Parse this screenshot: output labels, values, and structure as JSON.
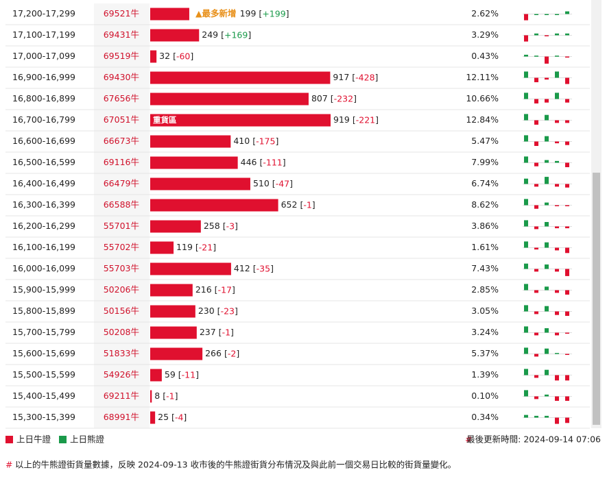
{
  "table": {
    "rows": [
      {
        "range": "17,200-17,299",
        "code": "69521牛",
        "qty": 199,
        "change": "+199",
        "pct": "2.62%",
        "tag": "▲最多新增",
        "trend": [
          -0.7,
          0,
          0,
          0,
          0.3
        ]
      },
      {
        "range": "17,100-17,199",
        "code": "69431牛",
        "qty": 249,
        "change": "+169",
        "pct": "3.29%",
        "trend": [
          -0.7,
          0.2,
          -0.1,
          0.2,
          0.2
        ]
      },
      {
        "range": "17,000-17,099",
        "code": "69519牛",
        "qty": 32,
        "change": "-60",
        "pct": "0.43%",
        "trend": [
          0.2,
          0.1,
          -0.8,
          0.1,
          -0.1
        ]
      },
      {
        "range": "16,900-16,999",
        "code": "69430牛",
        "qty": 917,
        "change": "-428",
        "pct": "12.11%",
        "trend": [
          0.7,
          -0.5,
          -0.2,
          0.7,
          -0.7
        ]
      },
      {
        "range": "16,800-16,899",
        "code": "67656牛",
        "qty": 807,
        "change": "-232",
        "pct": "10.66%",
        "trend": [
          0.7,
          -0.5,
          -0.4,
          0.7,
          -0.4
        ]
      },
      {
        "range": "16,700-16,799",
        "code": "67051牛",
        "qty": 919,
        "change": "-221",
        "pct": "12.84%",
        "tag": "重貨區",
        "trend": [
          0.7,
          -0.5,
          0.6,
          -0.3,
          -0.3
        ]
      },
      {
        "range": "16,600-16,699",
        "code": "66673牛",
        "qty": 410,
        "change": "-175",
        "pct": "5.47%",
        "trend": [
          0.7,
          -0.5,
          0.6,
          -0.2,
          -0.4
        ]
      },
      {
        "range": "16,500-16,599",
        "code": "69116牛",
        "qty": 446,
        "change": "-111",
        "pct": "7.99%",
        "trend": [
          0.7,
          -0.4,
          0.3,
          0.2,
          -0.5
        ]
      },
      {
        "range": "16,400-16,499",
        "code": "66479牛",
        "qty": 510,
        "change": "-47",
        "pct": "6.74%",
        "trend": [
          0.6,
          -0.3,
          0.8,
          -0.3,
          -0.4
        ]
      },
      {
        "range": "16,300-16,399",
        "code": "66588牛",
        "qty": 652,
        "change": "-1",
        "pct": "8.62%",
        "trend": [
          0.7,
          -0.4,
          0.3,
          -0.1,
          -0.1
        ]
      },
      {
        "range": "16,200-16,299",
        "code": "55701牛",
        "qty": 258,
        "change": "-3",
        "pct": "3.86%",
        "trend": [
          0.7,
          -0.3,
          0.5,
          -0.2,
          -0.2
        ]
      },
      {
        "range": "16,100-16,199",
        "code": "55702牛",
        "qty": 119,
        "change": "-21",
        "pct": "1.61%",
        "trend": [
          0.7,
          -0.2,
          0.6,
          -0.3,
          -0.6
        ]
      },
      {
        "range": "16,000-16,099",
        "code": "55703牛",
        "qty": 412,
        "change": "-35",
        "pct": "7.43%",
        "trend": [
          0.6,
          -0.3,
          0.5,
          -0.3,
          -0.8
        ]
      },
      {
        "range": "15,900-15,999",
        "code": "50206牛",
        "qty": 216,
        "change": "-17",
        "pct": "2.85%",
        "trend": [
          0.7,
          -0.3,
          0.4,
          -0.3,
          -0.5
        ]
      },
      {
        "range": "15,800-15,899",
        "code": "50156牛",
        "qty": 230,
        "change": "-23",
        "pct": "3.05%",
        "trend": [
          0.7,
          -0.3,
          0.6,
          -0.4,
          -0.5
        ]
      },
      {
        "range": "15,700-15,799",
        "code": "50208牛",
        "qty": 237,
        "change": "-1",
        "pct": "3.24%",
        "trend": [
          0.7,
          -0.3,
          0.5,
          -0.3,
          -0.1
        ]
      },
      {
        "range": "15,600-15,699",
        "code": "51833牛",
        "qty": 266,
        "change": "-2",
        "pct": "5.37%",
        "trend": [
          0.7,
          -0.3,
          0.6,
          0.1,
          -0.1
        ]
      },
      {
        "range": "15,500-15,599",
        "code": "54926牛",
        "qty": 59,
        "change": "-11",
        "pct": "1.39%",
        "trend": [
          0.7,
          -0.3,
          0.6,
          -0.6,
          -0.6
        ]
      },
      {
        "range": "15,400-15,499",
        "code": "69211牛",
        "qty": 8,
        "change": "-1",
        "pct": "0.10%",
        "trend": [
          0.7,
          -0.3,
          0.2,
          -0.5,
          -0.5
        ]
      },
      {
        "range": "15,300-15,399",
        "code": "68991牛",
        "qty": 25,
        "change": "-4",
        "pct": "0.34%",
        "trend": [
          0.3,
          0.2,
          0.2,
          -0.7,
          -0.6
        ]
      }
    ]
  },
  "legend": {
    "bull": "上日牛證",
    "bear": "上日熊證"
  },
  "updated": {
    "hash": "#",
    "label": "最後更新時間: 2024-09-14 07:06"
  },
  "footnote": {
    "hash": "#",
    "text": "以上的牛熊證街貨量數據，反映 2024-09-13 收市後的牛熊證街貨分布情況及與此前一個交易日比較的街貨量變化。"
  }
}
